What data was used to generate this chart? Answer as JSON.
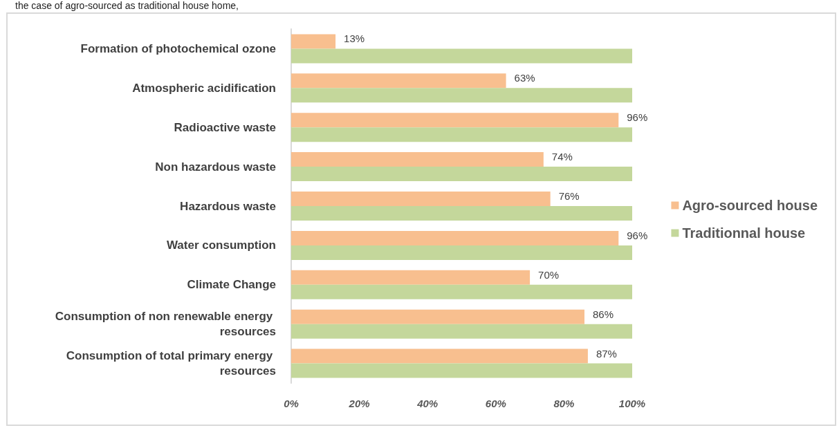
{
  "chart_data": {
    "type": "bar",
    "orientation": "horizontal",
    "annotations": [
      "the case of agro-sourced as traditional house home,"
    ],
    "categories": [
      "Formation of photochemical ozone",
      "Atmospheric acidification",
      "Radioactive waste",
      "Non hazardous waste",
      "Hazardous waste",
      "Water consumption",
      "Climate Change",
      "Consumption of non renewable energy resources",
      "Consumption of total primary energy resources"
    ],
    "series": [
      {
        "name": "Agro-sourced house",
        "color": "#f8bf8f",
        "values": [
          13,
          63,
          96,
          74,
          76,
          96,
          70,
          86,
          87
        ],
        "value_labels": [
          "13%",
          "63%",
          "96%",
          "74%",
          "76%",
          "96%",
          "70%",
          "86%",
          "87%"
        ]
      },
      {
        "name": "Traditionnal house",
        "color": "#c4d79b",
        "values": [
          100,
          100,
          100,
          100,
          100,
          100,
          100,
          100,
          100
        ]
      }
    ],
    "xlim": [
      0,
      100
    ],
    "xticks": [
      {
        "value": 0,
        "label": "0%"
      },
      {
        "value": 20,
        "label": "20%"
      },
      {
        "value": 40,
        "label": "40%"
      },
      {
        "value": 60,
        "label": "60%"
      },
      {
        "value": 80,
        "label": "80%"
      },
      {
        "value": 100,
        "label": "100%"
      }
    ],
    "grid": false,
    "legend": "right"
  }
}
